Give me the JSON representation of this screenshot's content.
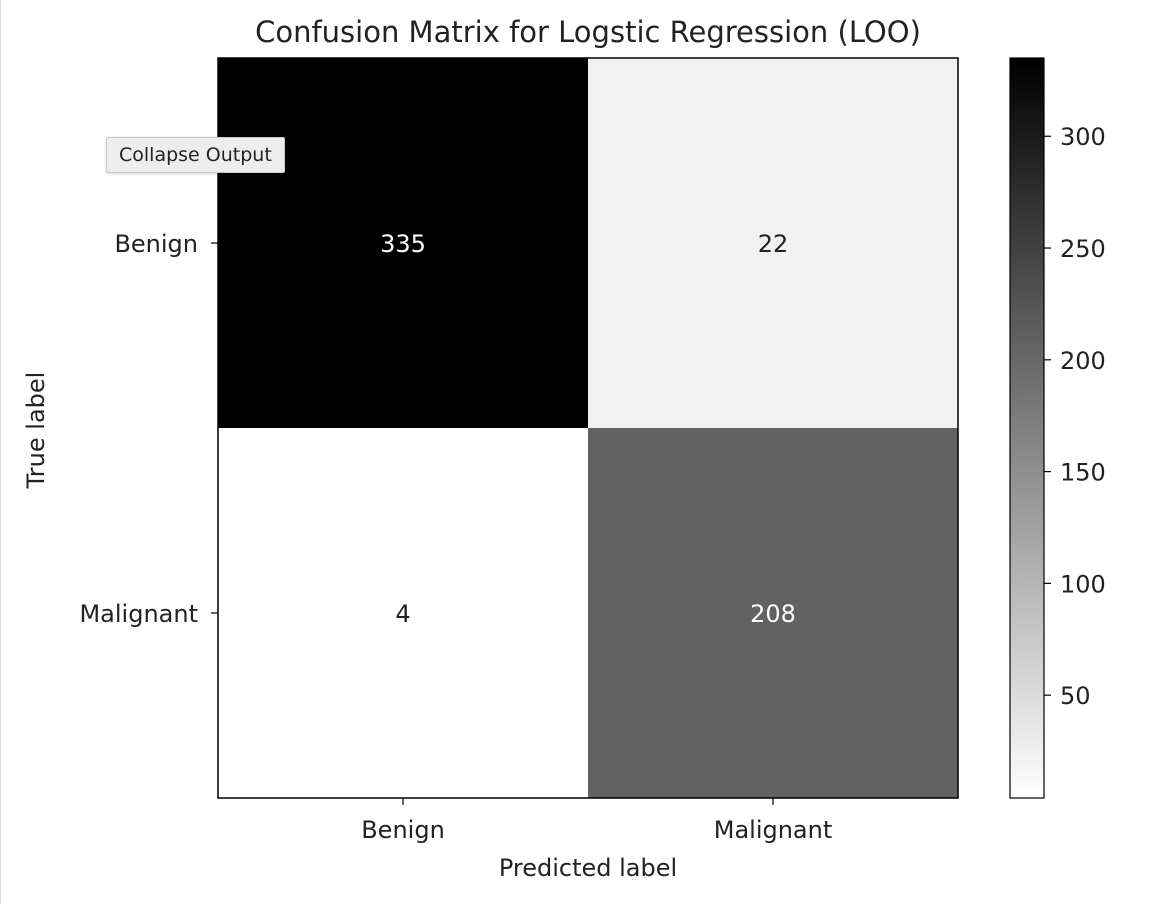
{
  "output_controls": {
    "collapse_label": "Collapse Output"
  },
  "chart_data": {
    "type": "heatmap",
    "title": "Confusion Matrix for Logstic Regression (LOO)",
    "xlabel": "Predicted label",
    "ylabel": "True label",
    "x_categories": [
      "Benign",
      "Malignant"
    ],
    "y_categories": [
      "Benign",
      "Malignant"
    ],
    "values": [
      [
        335,
        22
      ],
      [
        4,
        208
      ]
    ],
    "colormap": "gray_r",
    "colorbar": {
      "range": [
        4,
        335
      ],
      "ticks": [
        50,
        100,
        150,
        200,
        250,
        300
      ]
    },
    "grid": false,
    "colors": {
      "low": "#ffffff",
      "high": "#000000",
      "text_on_dark": "#ffffff",
      "text_on_light": "#222222",
      "axis": "#000000"
    }
  }
}
